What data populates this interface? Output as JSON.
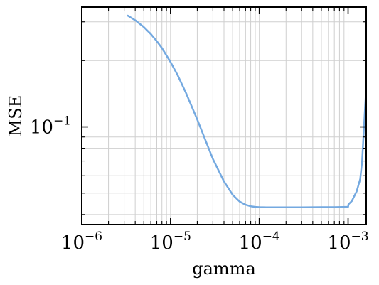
{
  "chart_data": {
    "type": "line",
    "title": "",
    "xlabel": "gamma",
    "ylabel": "MSE",
    "xscale": "log",
    "yscale": "log",
    "xlim": [
      1e-06,
      0.0016
    ],
    "ylim": [
      0.036,
      0.35
    ],
    "grid": true,
    "x_ticks": [
      {
        "base": "10",
        "exp": "−6"
      },
      {
        "base": "10",
        "exp": "−5"
      },
      {
        "base": "10",
        "exp": "−4"
      },
      {
        "base": "10",
        "exp": "−3"
      }
    ],
    "y_ticks": [
      {
        "base": "10",
        "exp": "−1"
      }
    ],
    "series": [
      {
        "color": "#74a9e0",
        "x": [
          3.3e-06,
          4e-06,
          5e-06,
          6e-06,
          7e-06,
          8e-06,
          1e-05,
          1.2e-05,
          1.5e-05,
          2e-05,
          2.5e-05,
          3e-05,
          4e-05,
          5e-05,
          6e-05,
          7e-05,
          8e-05,
          9e-05,
          0.0001,
          0.00012,
          0.00015,
          0.0002,
          0.0003,
          0.0005,
          0.0007,
          0.00095,
          0.001,
          0.00101,
          0.0011,
          0.00125,
          0.00137,
          0.00144,
          0.0015,
          0.0016
        ],
        "y": [
          0.32,
          0.305,
          0.284,
          0.264,
          0.245,
          0.228,
          0.197,
          0.172,
          0.142,
          0.108,
          0.086,
          0.0715,
          0.0565,
          0.0492,
          0.0458,
          0.0443,
          0.0436,
          0.0433,
          0.0432,
          0.0431,
          0.0431,
          0.0431,
          0.0431,
          0.0432,
          0.0432,
          0.0433,
          0.0433,
          0.0445,
          0.046,
          0.051,
          0.058,
          0.07,
          0.095,
          0.15
        ]
      }
    ]
  }
}
